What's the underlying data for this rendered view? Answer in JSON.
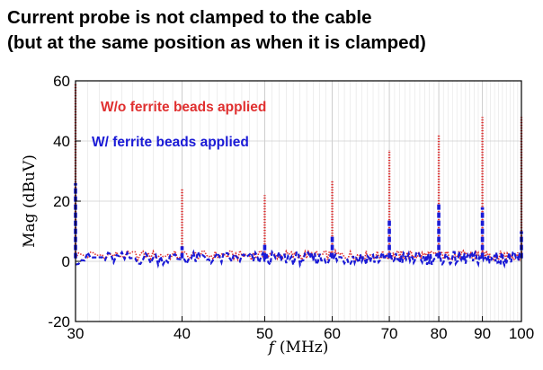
{
  "title_lines": [
    "Current probe is not clamped to the cable",
    "(but at the same position as when it is clamped)"
  ],
  "chart_data": {
    "type": "line",
    "xlabel_var": "f",
    "xlabel_unit": "(MHz)",
    "ylabel": "Mag (dBuV)",
    "xscale": "log",
    "xlim": [
      30,
      100
    ],
    "ylim": [
      -20,
      60
    ],
    "xticks": [
      30,
      40,
      50,
      60,
      70,
      80,
      90,
      100
    ],
    "yticks": [
      -20,
      0,
      20,
      40,
      60
    ],
    "grid": true,
    "legend_position": "top-left",
    "colors": {
      "series_0": "#e03030",
      "series_1": "#1a1ad6"
    },
    "noise_floor": {
      "series_0": 2,
      "series_1": 1
    },
    "series": [
      {
        "name": "W/o ferrite beads applied",
        "style": "dotted",
        "peaks": [
          {
            "x": 30,
            "y": 59
          },
          {
            "x": 40,
            "y": 24
          },
          {
            "x": 50,
            "y": 22
          },
          {
            "x": 60,
            "y": 27
          },
          {
            "x": 70,
            "y": 37
          },
          {
            "x": 80,
            "y": 42
          },
          {
            "x": 90,
            "y": 48
          },
          {
            "x": 100,
            "y": 48
          }
        ]
      },
      {
        "name": "W/ ferrite beads applied",
        "style": "dashed",
        "peaks": [
          {
            "x": 30,
            "y": 26
          },
          {
            "x": 40,
            "y": 5
          },
          {
            "x": 50,
            "y": 6
          },
          {
            "x": 60,
            "y": 9
          },
          {
            "x": 70,
            "y": 14
          },
          {
            "x": 80,
            "y": 19
          },
          {
            "x": 90,
            "y": 18
          },
          {
            "x": 100,
            "y": 10
          }
        ]
      }
    ]
  }
}
